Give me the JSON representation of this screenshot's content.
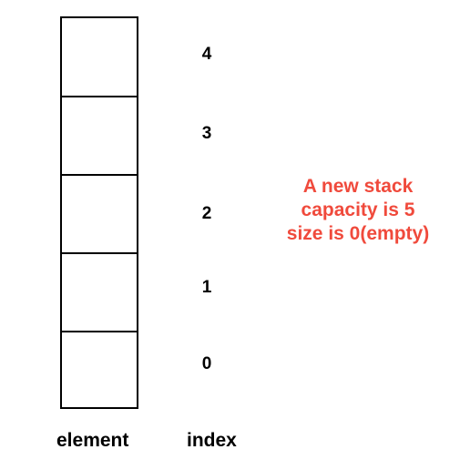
{
  "stack": {
    "cells": [
      {
        "index": "4"
      },
      {
        "index": "3"
      },
      {
        "index": "2"
      },
      {
        "index": "1"
      },
      {
        "index": "0"
      }
    ]
  },
  "labels": {
    "element": "element",
    "index": "index"
  },
  "note": {
    "lines": [
      "A new stack",
      "capacity is 5",
      "size is 0(empty)"
    ],
    "color": "#f04a3c"
  }
}
